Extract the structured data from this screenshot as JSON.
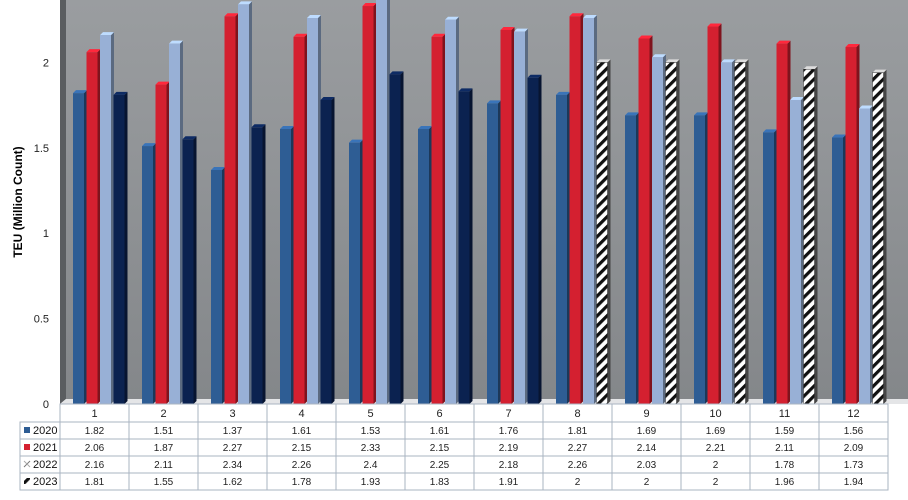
{
  "chart_data": {
    "type": "bar",
    "title": "",
    "ylabel": "TEU (Million Count)",
    "xlabel": "",
    "ylim": [
      0,
      2.4
    ],
    "yticks": [
      "0",
      "0.5",
      "1",
      "1.5",
      "2"
    ],
    "categories": [
      "1",
      "2",
      "3",
      "4",
      "5",
      "6",
      "7",
      "8",
      "9",
      "10",
      "11",
      "12"
    ],
    "series": [
      {
        "name": "2020",
        "values": [
          1.82,
          1.51,
          1.37,
          1.61,
          1.53,
          1.61,
          1.76,
          1.81,
          1.69,
          1.69,
          1.59,
          1.56
        ]
      },
      {
        "name": "2021",
        "values": [
          2.06,
          1.87,
          2.27,
          2.15,
          2.33,
          2.15,
          2.19,
          2.27,
          2.14,
          2.21,
          2.11,
          2.09
        ]
      },
      {
        "name": "2022",
        "values": [
          2.16,
          2.11,
          2.34,
          2.26,
          2.4,
          2.25,
          2.18,
          2.26,
          2.03,
          2,
          1.78,
          1.73
        ]
      },
      {
        "name": "2023",
        "values": [
          1.81,
          1.55,
          1.62,
          1.78,
          1.93,
          1.83,
          1.91,
          2,
          2,
          2,
          1.96,
          1.94
        ]
      }
    ],
    "data_table": {
      "rows": [
        {
          "series": "2020",
          "cells": [
            "1.82",
            "1.51",
            "1.37",
            "1.61",
            "1.53",
            "1.61",
            "1.76",
            "1.81",
            "1.69",
            "1.69",
            "1.59",
            "1.56"
          ]
        },
        {
          "series": "2021",
          "cells": [
            "2.06",
            "1.87",
            "2.27",
            "2.15",
            "2.33",
            "2.15",
            "2.19",
            "2.27",
            "2.14",
            "2.21",
            "2.11",
            "2.09"
          ]
        },
        {
          "series": "2022",
          "cells": [
            "2.16",
            "2.11",
            "2.34",
            "2.26",
            "2.4",
            "2.25",
            "2.18",
            "2.26",
            "2.03",
            "2",
            "1.78",
            "1.73"
          ]
        },
        {
          "series": "2023",
          "cells": [
            "1.81",
            "1.55",
            "1.62",
            "1.78",
            "1.93",
            "1.83",
            "1.91",
            "2",
            "2",
            "2",
            "1.96",
            "1.94"
          ]
        }
      ]
    },
    "colors": {
      "2020": "#2e5d94",
      "2021": "#d42030",
      "2022": "#98b0d6",
      "2023": "#0b2250",
      "wall": "#8f9295",
      "wall_side": "#5a5d60",
      "floor": "#e4e5e7"
    },
    "pattern_note": "2023 bars for months 8-12 shown hatched (forecast)",
    "grid": false,
    "legend": "data-table-left"
  }
}
